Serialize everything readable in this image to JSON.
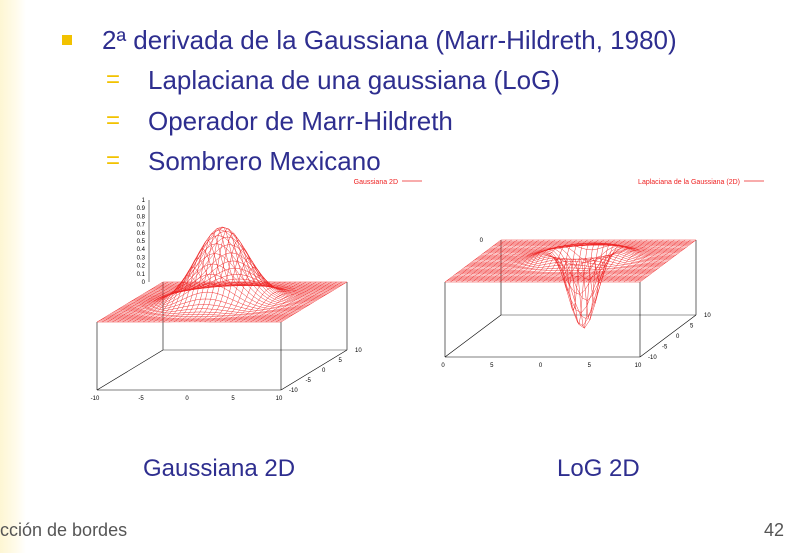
{
  "slide": {
    "bullet": "2ª derivada de la Gaussiana (Marr-Hildreth, 1980)",
    "sub_items": [
      "Laplaciana de una gaussiana (LoG)",
      "Operador de Marr-Hildreth",
      "Sombrero Mexicano"
    ],
    "sub_marker": "=",
    "captions": {
      "left": "Gaussiana 2D",
      "right": "LoG 2D"
    },
    "footer": {
      "left": "cción de bordes",
      "page_number": "42"
    }
  },
  "colors": {
    "text": "#2e2e8f",
    "bullet": "#f2c200",
    "mesh": "#ee2222",
    "axis": "#000000"
  },
  "plots": [
    {
      "legend": "Gaussiana 2D",
      "function": "gaussian",
      "z_ticks": [
        "1",
        "0.9",
        "0.8",
        "0.7",
        "0.6",
        "0.5",
        "0.4",
        "0.3",
        "0.2",
        "0.1",
        "0"
      ],
      "x_ticks": [
        "-10",
        "-5",
        "0",
        "5",
        "10"
      ],
      "y_ticks": [
        "10",
        "5",
        "0",
        "-5",
        "-10"
      ]
    },
    {
      "legend": "Laplaciana de la Gaussiana (2D)",
      "function": "log",
      "z_ticks": [
        "0"
      ],
      "x_ticks": [
        "0",
        "5",
        "0",
        "5",
        "10"
      ],
      "y_ticks": [
        "10",
        "5",
        "0",
        "-5",
        "-10"
      ]
    }
  ]
}
